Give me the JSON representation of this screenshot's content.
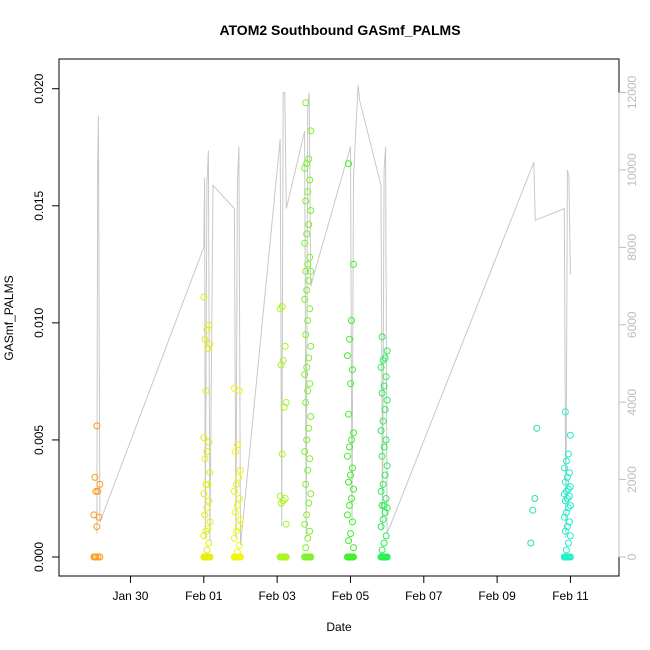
{
  "chart_data": {
    "type": "scatter",
    "title": "ATOM2 Southbound GASmf_PALMS",
    "xlabel": "Date",
    "ylabel": "GASmf_PALMS",
    "ylim": [
      0,
      0.0205
    ],
    "y_ticks": [
      0.0,
      0.005,
      0.01,
      0.015,
      0.02
    ],
    "y_tick_labels": [
      "0.000",
      "0.005",
      "0.010",
      "0.015",
      "0.020"
    ],
    "xlim": [
      "2017-01-28T13:00",
      "2017-02-11T20:00"
    ],
    "x_ticks": [
      "2017-01-30",
      "2017-02-01",
      "2017-02-03",
      "2017-02-05",
      "2017-02-07",
      "2017-02-09",
      "2017-02-11"
    ],
    "x_tick_labels": [
      "Jan 30",
      "Feb 01",
      "Feb 03",
      "Feb 05",
      "Feb 07",
      "Feb 09",
      "Feb 11"
    ],
    "y2lim": [
      0,
      12400
    ],
    "y2_ticks": [
      0,
      2000,
      4000,
      6000,
      8000,
      10000,
      12000
    ],
    "y2_tick_labels": [
      "0",
      "2000",
      "4000",
      "6000",
      "8000",
      "10000",
      "12000"
    ],
    "grid": false,
    "secondary_line_color": "#c8c8c8",
    "flights": [
      {
        "x": "2017-01-29T02:00",
        "color": "#ff9a1a",
        "values": [
          0,
          0,
          0,
          0,
          0,
          0.0013,
          0.0017,
          0.0018,
          0.0028,
          0.0028,
          0.0031,
          0.0034,
          0.0056
        ]
      },
      {
        "x": "2017-02-01T02:00",
        "color": "#e3ee12",
        "values": [
          0,
          0,
          0,
          0,
          0,
          0,
          0,
          0,
          0,
          0,
          0,
          0,
          0.0003,
          0.0006,
          0.0009,
          0.0011,
          0.0012,
          0.0015,
          0.0018,
          0.0021,
          0.0024,
          0.0027,
          0.0031,
          0.0031,
          0.0036,
          0.0042,
          0.0045,
          0.0049,
          0.0051,
          0.0071,
          0.0089,
          0.0091,
          0.0093,
          0.0097,
          0.0099,
          0.0111
        ]
      },
      {
        "x": "2017-02-01T22:00",
        "color": "#f0f50a",
        "values": [
          0,
          0,
          0,
          0,
          0,
          0,
          0,
          0,
          0,
          0,
          0,
          0,
          0.0002,
          0.0005,
          0.0008,
          0.0011,
          0.0013,
          0.0016,
          0.0019,
          0.0022,
          0.0025,
          0.0028,
          0.0031,
          0.0034,
          0.0037,
          0.0045,
          0.0048,
          0.0071,
          0.0072
        ]
      },
      {
        "x": "2017-02-03T04:00",
        "color": "#a9f51f",
        "values": [
          0,
          0,
          0,
          0,
          0,
          0,
          0,
          0,
          0,
          0,
          0.0014,
          0.0023,
          0.0024,
          0.0025,
          0.0026,
          0.0044,
          0.0064,
          0.0066,
          0.0082,
          0.0084,
          0.009,
          0.0106,
          0.0107
        ]
      },
      {
        "x": "2017-02-03T20:00",
        "color": "#7ef030",
        "values": [
          0,
          0,
          0,
          0,
          0,
          0,
          0,
          0,
          0,
          0,
          0,
          0.0004,
          0.0008,
          0.0011,
          0.0014,
          0.0018,
          0.0023,
          0.0027,
          0.0031,
          0.0037,
          0.0042,
          0.0045,
          0.005,
          0.0055,
          0.006,
          0.0066,
          0.0071,
          0.0074,
          0.0078,
          0.0081,
          0.0085,
          0.009,
          0.0095,
          0.0101,
          0.0106,
          0.011,
          0.0114,
          0.0118,
          0.0122,
          0.0122,
          0.0125,
          0.0128,
          0.0134,
          0.0138,
          0.0142,
          0.0148,
          0.0152,
          0.0156,
          0.0161,
          0.0166,
          0.0168,
          0.017,
          0.0182,
          0.0194
        ]
      },
      {
        "x": "2017-02-05T00:00",
        "color": "#3fef2a",
        "values": [
          0,
          0,
          0,
          0,
          0,
          0,
          0,
          0,
          0,
          0,
          0.0004,
          0.0007,
          0.001,
          0.0015,
          0.0018,
          0.0022,
          0.0025,
          0.0029,
          0.0032,
          0.0035,
          0.0038,
          0.0043,
          0.0047,
          0.005,
          0.0053,
          0.0061,
          0.0074,
          0.008,
          0.0086,
          0.0093,
          0.0101,
          0.0125,
          0.0168
        ]
      },
      {
        "x": "2017-02-05T22:00",
        "color": "#2aef55",
        "values": [
          0,
          0,
          0,
          0,
          0,
          0,
          0,
          0,
          0,
          0,
          0,
          0.0003,
          0.0006,
          0.0009,
          0.0013,
          0.0016,
          0.0019,
          0.0021,
          0.0022,
          0.0022,
          0.0025,
          0.0028,
          0.0031,
          0.0035,
          0.0039,
          0.0043,
          0.0047,
          0.005,
          0.0054,
          0.0058,
          0.0063,
          0.0067,
          0.007,
          0.0073,
          0.0077,
          0.0081,
          0.0084,
          0.0085,
          0.0088,
          0.0094
        ]
      },
      {
        "x": "2017-02-10T00:00",
        "color": "#26e0a8",
        "values": [
          0.0006,
          0.002,
          0.0025,
          0.0055
        ]
      },
      {
        "x": "2017-02-10T22:00",
        "color": "#1ef0c9",
        "values": [
          0,
          0,
          0,
          0,
          0,
          0,
          0,
          0,
          0.0003,
          0.0006,
          0.0009,
          0.0011,
          0.0013,
          0.0015,
          0.0017,
          0.0019,
          0.0021,
          0.0022,
          0.0024,
          0.0025,
          0.0026,
          0.0027,
          0.0028,
          0.0029,
          0.003,
          0.0032,
          0.0034,
          0.0036,
          0.0038,
          0.0041,
          0.0044,
          0.0052,
          0.0062
        ]
      }
    ],
    "secondary_series": {
      "name": "",
      "points": [
        [
          "2017-01-29T02:00",
          600
        ],
        [
          "2017-01-29T02:30",
          10000
        ],
        [
          "2017-01-29T03:00",
          11400
        ],
        [
          "2017-01-29T04:00",
          900
        ],
        [
          "2017-02-01T00:00",
          8000
        ],
        [
          "2017-02-01T00:30",
          9800
        ],
        [
          "2017-02-01T01:00",
          500
        ],
        [
          "2017-02-01T02:00",
          9600
        ],
        [
          "2017-02-01T03:00",
          10500
        ],
        [
          "2017-02-01T04:00",
          400
        ],
        [
          "2017-02-01T06:00",
          9600
        ],
        [
          "2017-02-01T20:00",
          9000
        ],
        [
          "2017-02-01T21:00",
          500
        ],
        [
          "2017-02-01T22:00",
          9700
        ],
        [
          "2017-02-01T23:00",
          10600
        ],
        [
          "2017-02-02T00:00",
          300
        ],
        [
          "2017-02-03T02:00",
          10800
        ],
        [
          "2017-02-03T03:00",
          800
        ],
        [
          "2017-02-03T04:00",
          12000
        ],
        [
          "2017-02-03T05:00",
          12000
        ],
        [
          "2017-02-03T06:00",
          9000
        ],
        [
          "2017-02-03T18:00",
          11000
        ],
        [
          "2017-02-03T19:00",
          500
        ],
        [
          "2017-02-03T20:00",
          11600
        ],
        [
          "2017-02-03T21:00",
          12000
        ],
        [
          "2017-02-03T22:00",
          7000
        ],
        [
          "2017-02-05T00:00",
          10600
        ],
        [
          "2017-02-05T01:00",
          900
        ],
        [
          "2017-02-05T02:00",
          9800
        ],
        [
          "2017-02-05T05:00",
          12200
        ],
        [
          "2017-02-05T06:00",
          11800
        ],
        [
          "2017-02-05T20:00",
          9600
        ],
        [
          "2017-02-05T21:00",
          700
        ],
        [
          "2017-02-05T22:00",
          10000
        ],
        [
          "2017-02-05T23:00",
          10600
        ],
        [
          "2017-02-06T00:00",
          600
        ],
        [
          "2017-02-10T00:00",
          10200
        ],
        [
          "2017-02-10T01:00",
          8700
        ],
        [
          "2017-02-10T20:00",
          9000
        ],
        [
          "2017-02-10T21:00",
          500
        ],
        [
          "2017-02-10T22:00",
          10000
        ],
        [
          "2017-02-10T23:00",
          9800
        ],
        [
          "2017-02-11T00:00",
          7300
        ]
      ]
    }
  }
}
